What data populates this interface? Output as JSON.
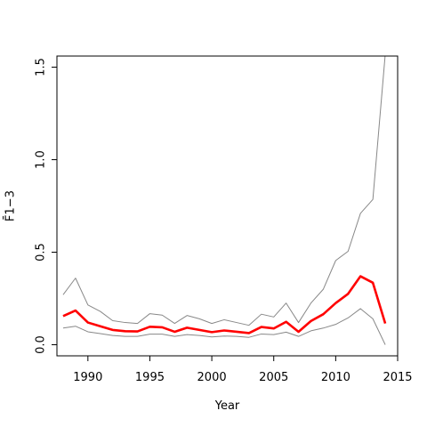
{
  "chart_data": {
    "type": "line",
    "title": "",
    "xlabel": "Year",
    "ylabel": "F̄1−3",
    "xlim": [
      1987.5,
      2015
    ],
    "ylim": [
      -0.06,
      1.56
    ],
    "xticks": [
      1990,
      1995,
      2000,
      2005,
      2010,
      2015
    ],
    "yticks": [
      0.0,
      0.5,
      1.0,
      1.5
    ],
    "ytick_labels": [
      "0.0",
      "0.5",
      "1.0",
      "1.5"
    ],
    "x": [
      1988,
      1989,
      1990,
      1991,
      1992,
      1993,
      1994,
      1995,
      1996,
      1997,
      1998,
      1999,
      2000,
      2001,
      2002,
      2003,
      2004,
      2005,
      2006,
      2007,
      2008,
      2009,
      2010,
      2011,
      2012,
      2013,
      2014
    ],
    "series": [
      {
        "color": "#ff0000",
        "width": 2.6,
        "values": [
          0.155,
          0.185,
          0.12,
          0.1,
          0.08,
          0.073,
          0.072,
          0.097,
          0.094,
          0.07,
          0.092,
          0.08,
          0.068,
          0.077,
          0.07,
          0.063,
          0.096,
          0.088,
          0.124,
          0.07,
          0.128,
          0.165,
          0.225,
          0.275,
          0.37,
          0.335,
          0.115
        ]
      },
      {
        "color": "#888888",
        "width": 1,
        "values": [
          0.27,
          0.36,
          0.215,
          0.18,
          0.13,
          0.12,
          0.115,
          0.168,
          0.16,
          0.115,
          0.158,
          0.14,
          0.115,
          0.135,
          0.12,
          0.105,
          0.165,
          0.15,
          0.225,
          0.12,
          0.225,
          0.3,
          0.455,
          0.505,
          0.71,
          0.785,
          1.57
        ]
      },
      {
        "color": "#888888",
        "width": 1,
        "values": [
          0.09,
          0.1,
          0.07,
          0.06,
          0.05,
          0.045,
          0.045,
          0.057,
          0.057,
          0.045,
          0.055,
          0.05,
          0.042,
          0.047,
          0.045,
          0.04,
          0.058,
          0.055,
          0.068,
          0.045,
          0.075,
          0.09,
          0.11,
          0.145,
          0.195,
          0.14,
          0.0
        ]
      }
    ],
    "grid": false,
    "legend": "none"
  }
}
